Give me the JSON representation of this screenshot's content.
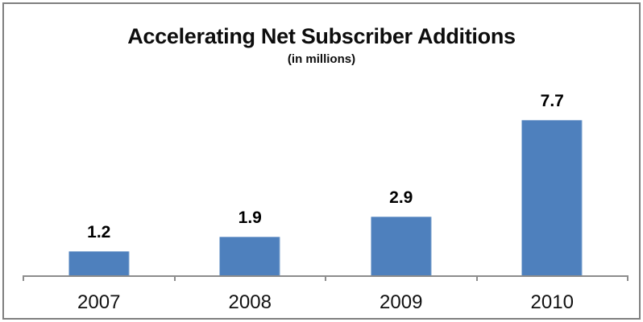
{
  "chart_data": {
    "type": "bar",
    "title": "Accelerating Net Subscriber Additions",
    "subtitle": "(in millions)",
    "categories": [
      "2007",
      "2008",
      "2009",
      "2010"
    ],
    "values": [
      1.2,
      1.9,
      2.9,
      7.7
    ],
    "value_labels": [
      "1.2",
      "1.9",
      "2.9",
      "7.7"
    ],
    "xlabel": "",
    "ylabel": "",
    "ylim": [
      0,
      8
    ],
    "grid": false,
    "legend": false,
    "value_labels_position": "above-bars",
    "bar_color": "#4e80bd",
    "axis_color": "#8c8c8c",
    "frame_color": "#7f7f7f",
    "text_color": "#000000"
  }
}
